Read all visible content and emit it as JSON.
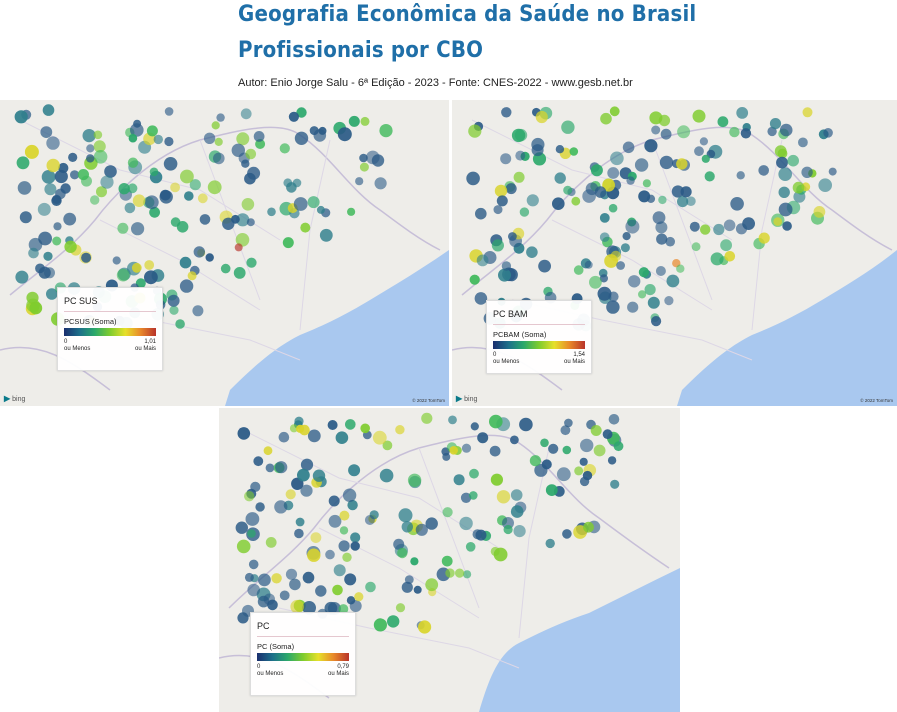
{
  "header": {
    "title_line1": "Geografia Econômica da Saúde no Brasil",
    "title_line2": "Profissionais por CBO",
    "subtitle": "Autor: Enio Jorge Salu - 6ª Edição - 2023 - Fonte: CNES-2022 - www.gesb.net.br"
  },
  "colors": {
    "title": "#1f6fa8",
    "land": "#eeede9",
    "ocean": "#a9c8ef",
    "border": "#c7bfd8",
    "road": "#ddd7e6",
    "heat_low": "#1a2e6e",
    "heat_mid": "#2ba86b",
    "heat_high": "#b8332a"
  },
  "maps": {
    "sus": {
      "legend_title": "PC SUS",
      "legend_field": "PCSUS (Soma)",
      "min": "0",
      "max": "1,01",
      "min_label": "ou Menos",
      "max_label": "ou Mais",
      "attribution": "bing",
      "copyright": "© 2022 TomTom"
    },
    "bam": {
      "legend_title": "PC BAM",
      "legend_field": "PCBAM (Soma)",
      "min": "0",
      "max": "1,54",
      "min_label": "ou Menos",
      "max_label": "ou Mais",
      "attribution": "bing",
      "copyright": "© 2022 TomTom"
    },
    "pc": {
      "legend_title": "PC",
      "legend_field": "PC (Soma)",
      "min": "0",
      "max": "0,79",
      "min_label": "ou Menos",
      "max_label": "ou Mais"
    }
  }
}
